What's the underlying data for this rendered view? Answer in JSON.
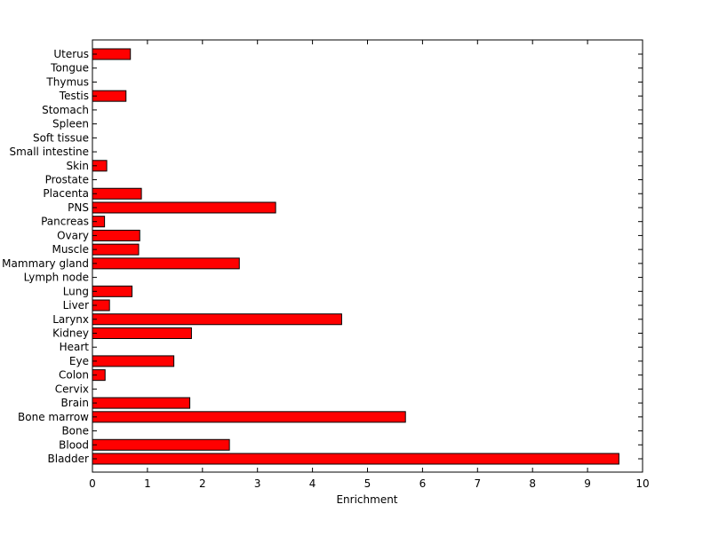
{
  "chart_data": {
    "type": "bar",
    "orientation": "horizontal",
    "xlabel": "Enrichment",
    "ylabel": "",
    "title": "",
    "xlim": [
      0,
      10
    ],
    "x_ticks": [
      0,
      1,
      2,
      3,
      4,
      5,
      6,
      7,
      8,
      9,
      10
    ],
    "grid": false,
    "bar_color": "#ff0000",
    "categories": [
      "Bladder",
      "Blood",
      "Bone",
      "Bone marrow",
      "Brain",
      "Cervix",
      "Colon",
      "Eye",
      "Heart",
      "Kidney",
      "Larynx",
      "Liver",
      "Lung",
      "Lymph node",
      "Mammary gland",
      "Muscle",
      "Ovary",
      "Pancreas",
      "PNS",
      "Placenta",
      "Prostate",
      "Skin",
      "Small intestine",
      "Soft tissue",
      "Spleen",
      "Stomach",
      "Testis",
      "Thymus",
      "Tongue",
      "Uterus"
    ],
    "values": [
      9.57,
      2.49,
      0,
      5.69,
      1.77,
      0,
      0.23,
      1.48,
      0,
      1.8,
      4.53,
      0.31,
      0.72,
      0,
      2.67,
      0.84,
      0.86,
      0.22,
      3.33,
      0.89,
      0,
      0.26,
      0,
      0,
      0,
      0,
      0.61,
      0,
      0,
      0.69
    ]
  }
}
